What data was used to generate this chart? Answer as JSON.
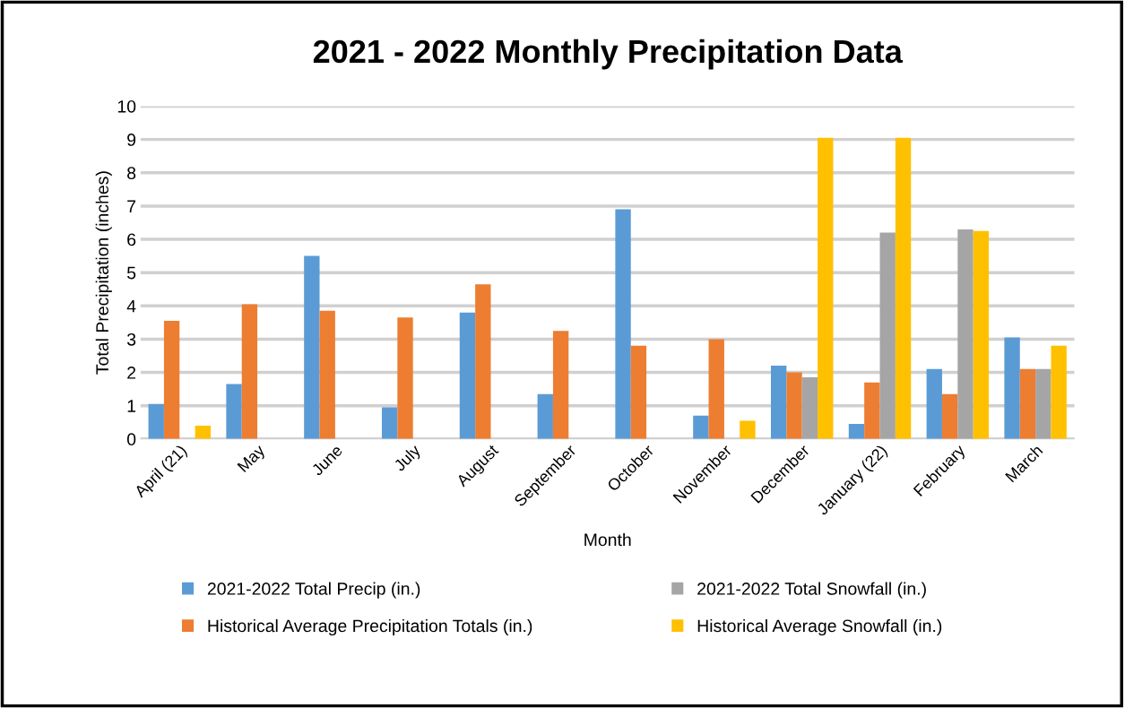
{
  "chart_data": {
    "type": "bar",
    "title": "2021 - 2022 Monthly Precipitation Data",
    "xlabel": "Month",
    "ylabel": "Total Precipitation (inches)",
    "categories": [
      "April (21)",
      "May",
      "June",
      "July",
      "August",
      "September",
      "October",
      "November",
      "December",
      "January (22)",
      "February",
      "March"
    ],
    "series": [
      {
        "name": "2021-2022 Total Precip (in.)",
        "color": "#5b9bd5",
        "values": [
          1.05,
          1.65,
          5.5,
          0.95,
          3.8,
          1.35,
          6.9,
          0.7,
          2.2,
          0.45,
          2.1,
          3.05
        ]
      },
      {
        "name": "Historical Average Precipitation Totals (in.)",
        "color": "#ed7d31",
        "values": [
          3.55,
          4.05,
          3.85,
          3.65,
          4.65,
          3.25,
          2.8,
          3.0,
          2.0,
          1.7,
          1.35,
          2.1
        ]
      },
      {
        "name": "2021-2022 Total Snowfall (in.)",
        "color": "#a5a5a5",
        "values": [
          0,
          0,
          0,
          0,
          0,
          0,
          0,
          0,
          1.85,
          6.2,
          6.3,
          2.1
        ]
      },
      {
        "name": "Historical Average Snowfall (in.)",
        "color": "#ffc000",
        "values": [
          0.4,
          0,
          0,
          0,
          0,
          0,
          0,
          0.55,
          9.05,
          9.05,
          6.25,
          2.8
        ]
      }
    ],
    "ylim": [
      0,
      10
    ],
    "yticks": [
      0,
      1,
      2,
      3,
      4,
      5,
      6,
      7,
      8,
      9,
      10
    ],
    "grid": "y",
    "legend": "bottom"
  }
}
